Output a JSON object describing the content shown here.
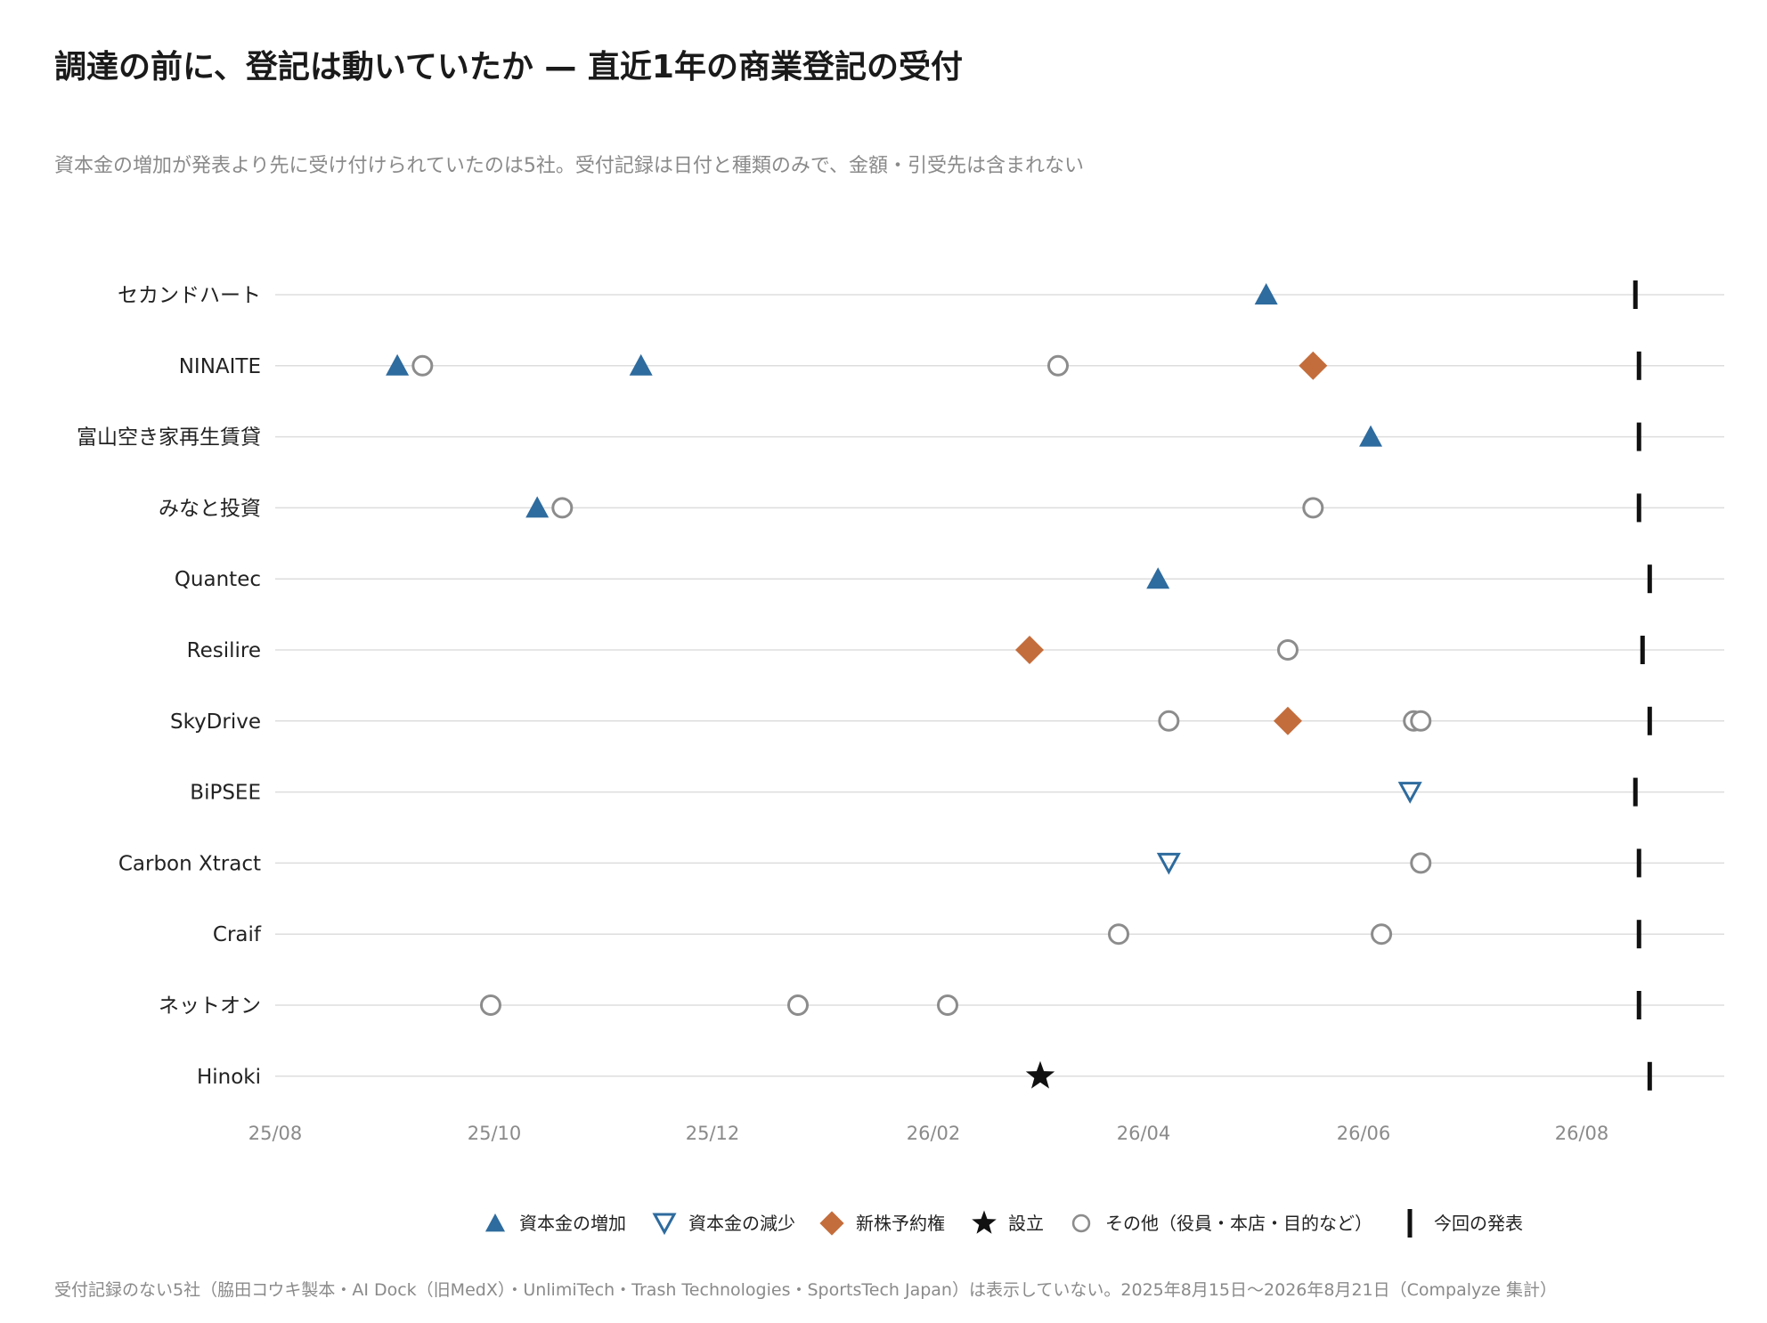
{
  "chart_data": {
    "type": "scatter",
    "title": "調達の前に、登記は動いていたか — 直近1年の商業登記の受付",
    "subtitle": "資本金の増加が発表より先に受け付けられていたのは5社。受付記録は日付と種類のみで、金額・引受先は含まれない",
    "footnote": "受付記録のない5社（脇田コウキ製本・AI Dock（旧MedX）・UnlimiTech・Trash Technologies・SportsTech Japan）は表示していない。2025年8月15日〜2026年8月21日（Compalyze 集計）",
    "x_axis": {
      "type": "date",
      "range": [
        "2025-08-01",
        "2026-09-15"
      ],
      "ticks": [
        {
          "date": "2025-08-01",
          "label": "25/08"
        },
        {
          "date": "2025-10-01",
          "label": "25/10"
        },
        {
          "date": "2025-12-01",
          "label": "25/12"
        },
        {
          "date": "2026-02-01",
          "label": "26/02"
        },
        {
          "date": "2026-04-01",
          "label": "26/04"
        },
        {
          "date": "2026-06-01",
          "label": "26/06"
        },
        {
          "date": "2026-08-01",
          "label": "26/08"
        }
      ]
    },
    "grid": "horizontal",
    "legend_position": "bottom",
    "legend": [
      {
        "key": "increase",
        "label": "資本金の増加"
      },
      {
        "key": "decrease",
        "label": "資本金の減少"
      },
      {
        "key": "warrant",
        "label": "新株予約権"
      },
      {
        "key": "founding",
        "label": "設立"
      },
      {
        "key": "other",
        "label": "その他（役員・本店・目的など）"
      },
      {
        "key": "announce",
        "label": "今回の発表"
      }
    ],
    "colors": {
      "increase": "#2e6b9e",
      "decrease": "#2e6b9e",
      "warrant": "#c46d3c",
      "founding": "#111111",
      "other": "#8c8c8c",
      "announce": "#111111",
      "grid": "#dddddd",
      "axis_text": "#8a8a8a",
      "label_text": "#222222"
    },
    "companies": [
      {
        "name": "セカンドハート",
        "announce": "2026-08-16",
        "events": [
          {
            "type": "increase",
            "date": "2026-05-05"
          }
        ]
      },
      {
        "name": "NINAITE",
        "announce": "2026-08-17",
        "events": [
          {
            "type": "increase",
            "date": "2025-09-04"
          },
          {
            "type": "other",
            "date": "2025-09-11"
          },
          {
            "type": "increase",
            "date": "2025-11-11"
          },
          {
            "type": "other",
            "date": "2026-03-08"
          },
          {
            "type": "warrant",
            "date": "2026-05-18"
          }
        ]
      },
      {
        "name": "富山空き家再生賃貸",
        "announce": "2026-08-17",
        "events": [
          {
            "type": "increase",
            "date": "2026-06-03"
          }
        ]
      },
      {
        "name": "みなと投資",
        "announce": "2026-08-17",
        "events": [
          {
            "type": "increase",
            "date": "2025-10-13"
          },
          {
            "type": "other",
            "date": "2025-10-20"
          },
          {
            "type": "other",
            "date": "2026-05-18"
          }
        ]
      },
      {
        "name": "Quantec",
        "announce": "2026-08-20",
        "events": [
          {
            "type": "increase",
            "date": "2026-04-05"
          }
        ]
      },
      {
        "name": "Resilire",
        "announce": "2026-08-18",
        "events": [
          {
            "type": "warrant",
            "date": "2026-02-28"
          },
          {
            "type": "other",
            "date": "2026-05-11"
          }
        ]
      },
      {
        "name": "SkyDrive",
        "announce": "2026-08-20",
        "events": [
          {
            "type": "other",
            "date": "2026-04-08"
          },
          {
            "type": "warrant",
            "date": "2026-05-11"
          },
          {
            "type": "other",
            "date": "2026-06-15"
          },
          {
            "type": "other",
            "date": "2026-06-17"
          }
        ]
      },
      {
        "name": "BiPSEE",
        "announce": "2026-08-16",
        "events": [
          {
            "type": "decrease",
            "date": "2026-06-14"
          }
        ]
      },
      {
        "name": "Carbon Xtract",
        "announce": "2026-08-17",
        "events": [
          {
            "type": "decrease",
            "date": "2026-04-08"
          },
          {
            "type": "other",
            "date": "2026-06-17"
          }
        ]
      },
      {
        "name": "Craif",
        "announce": "2026-08-17",
        "events": [
          {
            "type": "other",
            "date": "2026-03-25"
          },
          {
            "type": "other",
            "date": "2026-06-06"
          }
        ]
      },
      {
        "name": "ネットオン",
        "announce": "2026-08-17",
        "events": [
          {
            "type": "other",
            "date": "2025-09-30"
          },
          {
            "type": "other",
            "date": "2025-12-25"
          },
          {
            "type": "other",
            "date": "2026-02-05"
          }
        ]
      },
      {
        "name": "Hinoki",
        "announce": "2026-08-20",
        "events": [
          {
            "type": "founding",
            "date": "2026-03-03"
          }
        ]
      }
    ]
  }
}
